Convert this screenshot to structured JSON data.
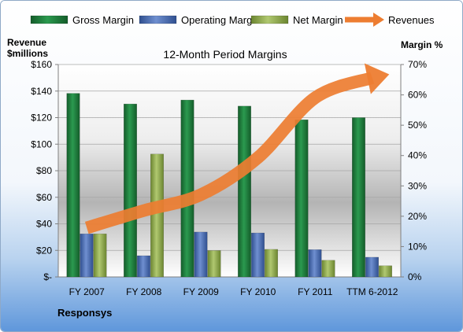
{
  "chart_data": {
    "type": "bar",
    "title": "12-Month Period Margins",
    "footer": "Responsys",
    "categories": [
      "FY 2007",
      "FY 2008",
      "FY 2009",
      "FY 2010",
      "FY 2011",
      "TTM 6-2012"
    ],
    "series": [
      {
        "name": "Gross Margin",
        "axis": "right",
        "color": "#1e7a3c",
        "values": [
          60.5,
          57.0,
          58.3,
          56.3,
          51.8,
          52.5
        ]
      },
      {
        "name": "Operating Margin",
        "axis": "right",
        "color": "#4a6cb0",
        "values": [
          14.2,
          7.0,
          14.8,
          14.5,
          9.0,
          6.5
        ]
      },
      {
        "name": "Net Margin",
        "axis": "right",
        "color": "#8ea94a",
        "values": [
          14.2,
          40.5,
          8.7,
          9.1,
          5.5,
          3.7
        ]
      },
      {
        "name": "Revenues",
        "axis": "left",
        "type": "line",
        "color": "#ed7d31",
        "values": [
          37,
          50,
          62,
          90,
          135,
          150
        ]
      }
    ],
    "yleft": {
      "label_line1": "Revenue",
      "label_line2": "$millions",
      "ylim": [
        0,
        160
      ],
      "ticks": [
        "$-",
        "$20",
        "$40",
        "$60",
        "$80",
        "$100",
        "$120",
        "$140",
        "$160"
      ]
    },
    "yright": {
      "label": "Margin %",
      "ylim": [
        0,
        70
      ],
      "ticks": [
        "0%",
        "10%",
        "20%",
        "30%",
        "40%",
        "50%",
        "60%",
        "70%"
      ]
    },
    "legend_position": "top",
    "grid": true
  }
}
